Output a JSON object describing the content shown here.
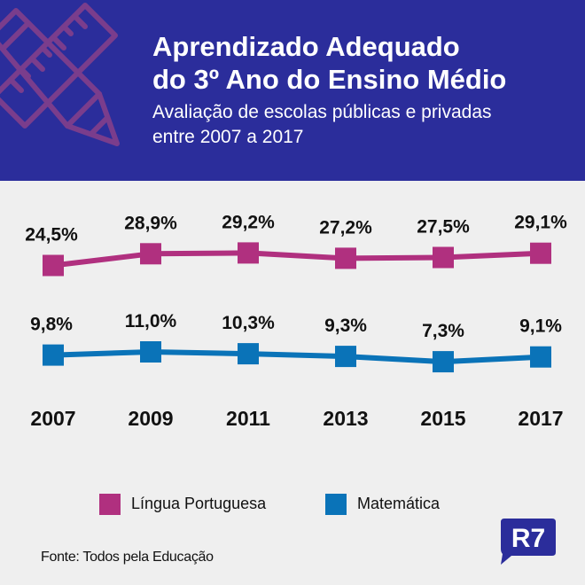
{
  "header": {
    "title_line1": "Aprendizado Adequado",
    "title_line2": "do 3º Ano do Ensino Médio",
    "subtitle_line1": "Avaliação de escolas públicas e privadas",
    "subtitle_line2": "entre 2007 a 2017",
    "background": "#2b2d9b",
    "icon": "ruler-pencil-crossed-icon"
  },
  "chart_data": {
    "type": "line",
    "title": "Aprendizado Adequado do 3º Ano do Ensino Médio",
    "subtitle": "Avaliação de escolas públicas e privadas entre 2007 a 2017",
    "categories": [
      "2007",
      "2009",
      "2011",
      "2013",
      "2015",
      "2017"
    ],
    "series": [
      {
        "name": "Língua Portuguesa",
        "color": "#b0307f",
        "values": [
          24.5,
          28.9,
          29.2,
          27.2,
          27.5,
          29.1
        ],
        "labels": [
          "24,5%",
          "28,9%",
          "29,2%",
          "27,2%",
          "27,5%",
          "29,1%"
        ]
      },
      {
        "name": "Matemática",
        "color": "#0a73b8",
        "values": [
          9.8,
          11.0,
          10.3,
          9.3,
          7.3,
          9.1
        ],
        "labels": [
          "9,8%",
          "11,0%",
          "10,3%",
          "9,3%",
          "7,3%",
          "9,1%"
        ]
      }
    ],
    "xlabel": "",
    "ylabel": "",
    "grid": false,
    "legend": "bottom"
  },
  "footer": {
    "source": "Fonte: Todos pela Educação",
    "logo_text": "R7",
    "logo_color": "#2b2d9b"
  }
}
